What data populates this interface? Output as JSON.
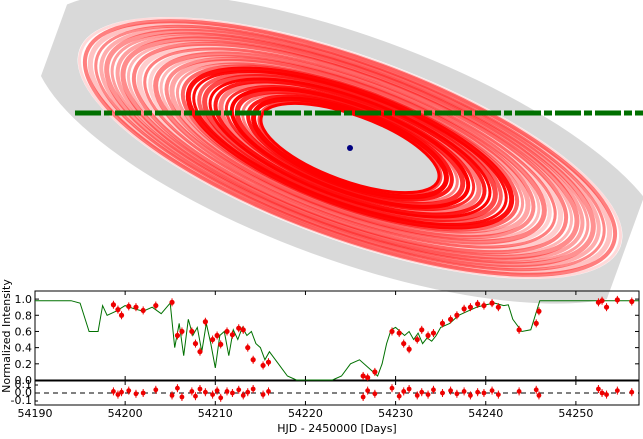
{
  "chart_data": [
    {
      "type": "diagram",
      "description_free": true,
      "series": [],
      "colors": {
        "disk_gray": "#d9d9d9",
        "ring_red": "#ff0000",
        "star": "#000080",
        "path": "#007000"
      }
    },
    {
      "type": "line",
      "ylabel": "Normalized Intensity",
      "ylim": [
        0.0,
        1.1
      ],
      "yticks": [
        "0.0",
        "0.2",
        "0.4",
        "0.6",
        "0.8",
        "1.0"
      ],
      "xlim": [
        54190,
        54257
      ],
      "model_x": [
        54190,
        54194,
        54195,
        54196,
        54197,
        54197.5,
        54198,
        54199,
        54200,
        54201,
        54202,
        54203,
        54204,
        54205,
        54205.5,
        54206,
        54206.5,
        54207,
        54207.5,
        54208,
        54208.5,
        54209,
        54209.5,
        54210,
        54210.5,
        54211,
        54211.5,
        54212,
        54212.5,
        54213,
        54213.5,
        54214,
        54214.5,
        54215,
        54215.5,
        54216,
        54217,
        54218,
        54219,
        54220,
        54221,
        54222,
        54223,
        54224,
        54225,
        54226,
        54227,
        54228,
        54228.5,
        54229,
        54229.5,
        54230,
        54230.5,
        54231,
        54231.5,
        54232,
        54232.5,
        54233,
        54233.5,
        54234,
        54234.5,
        54235,
        54236,
        54237,
        54238,
        54239,
        54240,
        54241,
        54242,
        54242.5,
        54243,
        54244,
        54245,
        54246,
        54247,
        54248,
        54249,
        54250,
        54251,
        54252,
        54253,
        54254,
        54255,
        54256,
        54257
      ],
      "model_y": [
        0.98,
        0.98,
        0.95,
        0.6,
        0.6,
        0.92,
        0.8,
        0.85,
        0.92,
        0.88,
        0.85,
        0.9,
        0.82,
        0.95,
        0.4,
        0.7,
        0.3,
        0.75,
        0.55,
        0.65,
        0.35,
        0.7,
        0.45,
        0.15,
        0.55,
        0.6,
        0.3,
        0.62,
        0.5,
        0.65,
        0.55,
        0.6,
        0.45,
        0.4,
        0.25,
        0.35,
        0.2,
        0.05,
        0.0,
        0.0,
        0.0,
        0.0,
        0.0,
        0.05,
        0.2,
        0.25,
        0.15,
        0.05,
        0.2,
        0.45,
        0.62,
        0.65,
        0.6,
        0.55,
        0.6,
        0.5,
        0.58,
        0.45,
        0.52,
        0.48,
        0.55,
        0.65,
        0.7,
        0.8,
        0.85,
        0.9,
        0.93,
        0.95,
        0.92,
        0.93,
        0.75,
        0.6,
        0.62,
        0.98,
        0.98,
        0.98,
        0.98,
        0.98,
        0.98,
        0.98,
        0.98,
        0.98,
        0.98,
        0.98,
        0.98
      ],
      "obs_x": [
        54198.7,
        54199.2,
        54199.6,
        54200.4,
        54201.2,
        54202,
        54203.4,
        54205.2,
        54205.8,
        54206.3,
        54207.4,
        54207.8,
        54208.3,
        54208.9,
        54209.7,
        54210.2,
        54210.6,
        54211.3,
        54211.9,
        54212.6,
        54213.1,
        54213.6,
        54214.2,
        54215.3,
        54215.9,
        54226.4,
        54226.9,
        54227.7,
        54229.6,
        54230.4,
        54230.9,
        54231.5,
        54232.4,
        54232.9,
        54233.6,
        54234.2,
        54235.2,
        54236.1,
        54236.8,
        54237.6,
        54238.3,
        54239.1,
        54239.8,
        54240.7,
        54241.4,
        54243.7,
        54245.6,
        54245.9,
        54252.5,
        54252.9,
        54253.4,
        54254.6,
        54256.2
      ],
      "obs_y": [
        0.93,
        0.87,
        0.8,
        0.91,
        0.9,
        0.86,
        0.92,
        0.96,
        0.55,
        0.6,
        0.6,
        0.45,
        0.35,
        0.72,
        0.5,
        0.55,
        0.44,
        0.6,
        0.56,
        0.64,
        0.62,
        0.4,
        0.25,
        0.18,
        0.22,
        0.05,
        0.03,
        0.1,
        0.6,
        0.58,
        0.45,
        0.38,
        0.5,
        0.62,
        0.55,
        0.58,
        0.7,
        0.75,
        0.8,
        0.88,
        0.9,
        0.94,
        0.92,
        0.95,
        0.9,
        0.62,
        0.7,
        0.85,
        0.96,
        0.98,
        0.9,
        0.99,
        0.97
      ],
      "color_model": "#007000",
      "color_obs": "#ee0000"
    },
    {
      "type": "scatter",
      "xlabel": "HJD - 2450000 [Days]",
      "xlim": [
        54190,
        54257
      ],
      "xticks": [
        "54190",
        "54200",
        "54210",
        "54220",
        "54230",
        "54240",
        "54250"
      ],
      "ylim": [
        -0.15,
        0.15
      ],
      "yticks": [
        "0.1",
        "0.0",
        "-0.1"
      ],
      "residual_y": [
        0.02,
        -0.02,
        0.01,
        0.03,
        -0.01,
        0.0,
        0.04,
        -0.03,
        0.06,
        -0.05,
        0.02,
        -0.04,
        0.05,
        0.01,
        -0.02,
        0.03,
        -0.06,
        0.02,
        0.0,
        0.04,
        -0.03,
        0.01,
        0.05,
        -0.02,
        0.02,
        -0.05,
        0.03,
        -0.01,
        0.06,
        -0.04,
        0.02,
        0.05,
        -0.03,
        0.01,
        -0.02,
        0.04,
        0.0,
        0.03,
        -0.01,
        0.02,
        -0.03,
        0.01,
        0.0,
        0.03,
        -0.02,
        0.02,
        0.04,
        -0.03,
        0.05,
        0.0,
        -0.02,
        0.03,
        0.01
      ]
    }
  ]
}
